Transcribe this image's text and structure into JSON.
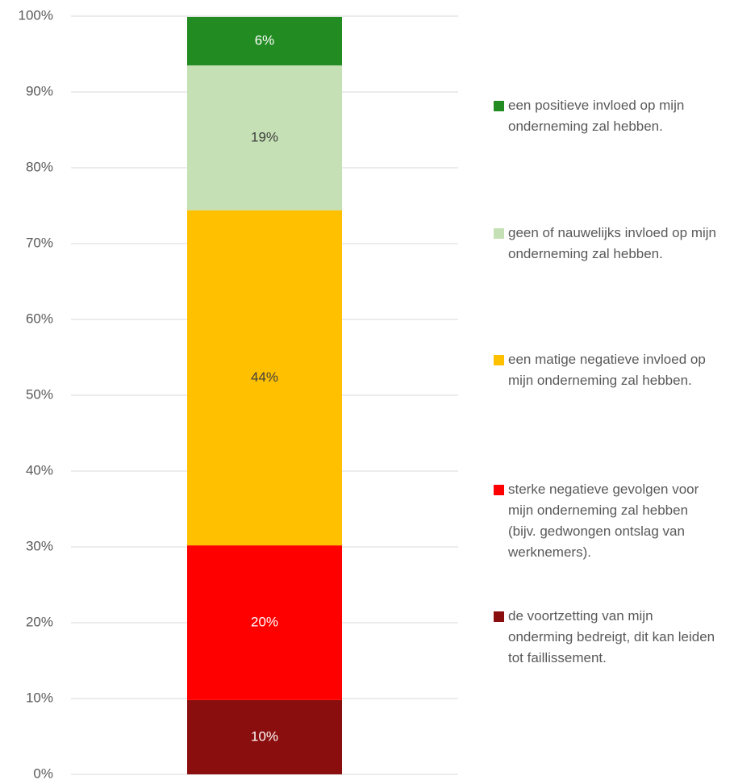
{
  "chart_data": {
    "type": "stacked_bar",
    "categories": [
      null
    ],
    "series": [
      {
        "name": "de voortzetting van mijn onderming bedreigt, dit kan leiden tot faillissement.",
        "color": "#8b0e0e",
        "values": [
          9.8
        ],
        "value_labels": [
          "10%"
        ]
      },
      {
        "name": "sterke negatieve gevolgen voor mijn onderneming zal hebben (bijv. gedwongen ontslag van werknemers).",
        "color": "#ff0000",
        "values": [
          20.4
        ],
        "value_labels": [
          "20%"
        ]
      },
      {
        "name": "een matige negatieve invloed op mijn onderneming zal hebben.",
        "color": "#ffc000",
        "values": [
          44.2
        ],
        "value_labels": [
          "44%"
        ]
      },
      {
        "name": "geen of nauwelijks invloed op mijn onderneming zal hebben.",
        "color": "#c5e0b4",
        "values": [
          19.1
        ],
        "value_labels": [
          "19%"
        ]
      },
      {
        "name": "een positieve invloed op mijn onderneming zal hebben.",
        "color": "#228b22",
        "values": [
          6.4
        ],
        "value_labels": [
          "6%"
        ]
      }
    ],
    "ylim": [
      0,
      100
    ],
    "yticks": [
      {
        "value": 0,
        "label": "0%"
      },
      {
        "value": 10,
        "label": "10%"
      },
      {
        "value": 20,
        "label": "20%"
      },
      {
        "value": 30,
        "label": "30%"
      },
      {
        "value": 40,
        "label": "40%"
      },
      {
        "value": 50,
        "label": "50%"
      },
      {
        "value": 60,
        "label": "60%"
      },
      {
        "value": 70,
        "label": "70%"
      },
      {
        "value": 80,
        "label": "80%"
      },
      {
        "value": 90,
        "label": "90%"
      },
      {
        "value": 100,
        "label": "100%"
      }
    ],
    "grid": true,
    "legend": "right"
  }
}
